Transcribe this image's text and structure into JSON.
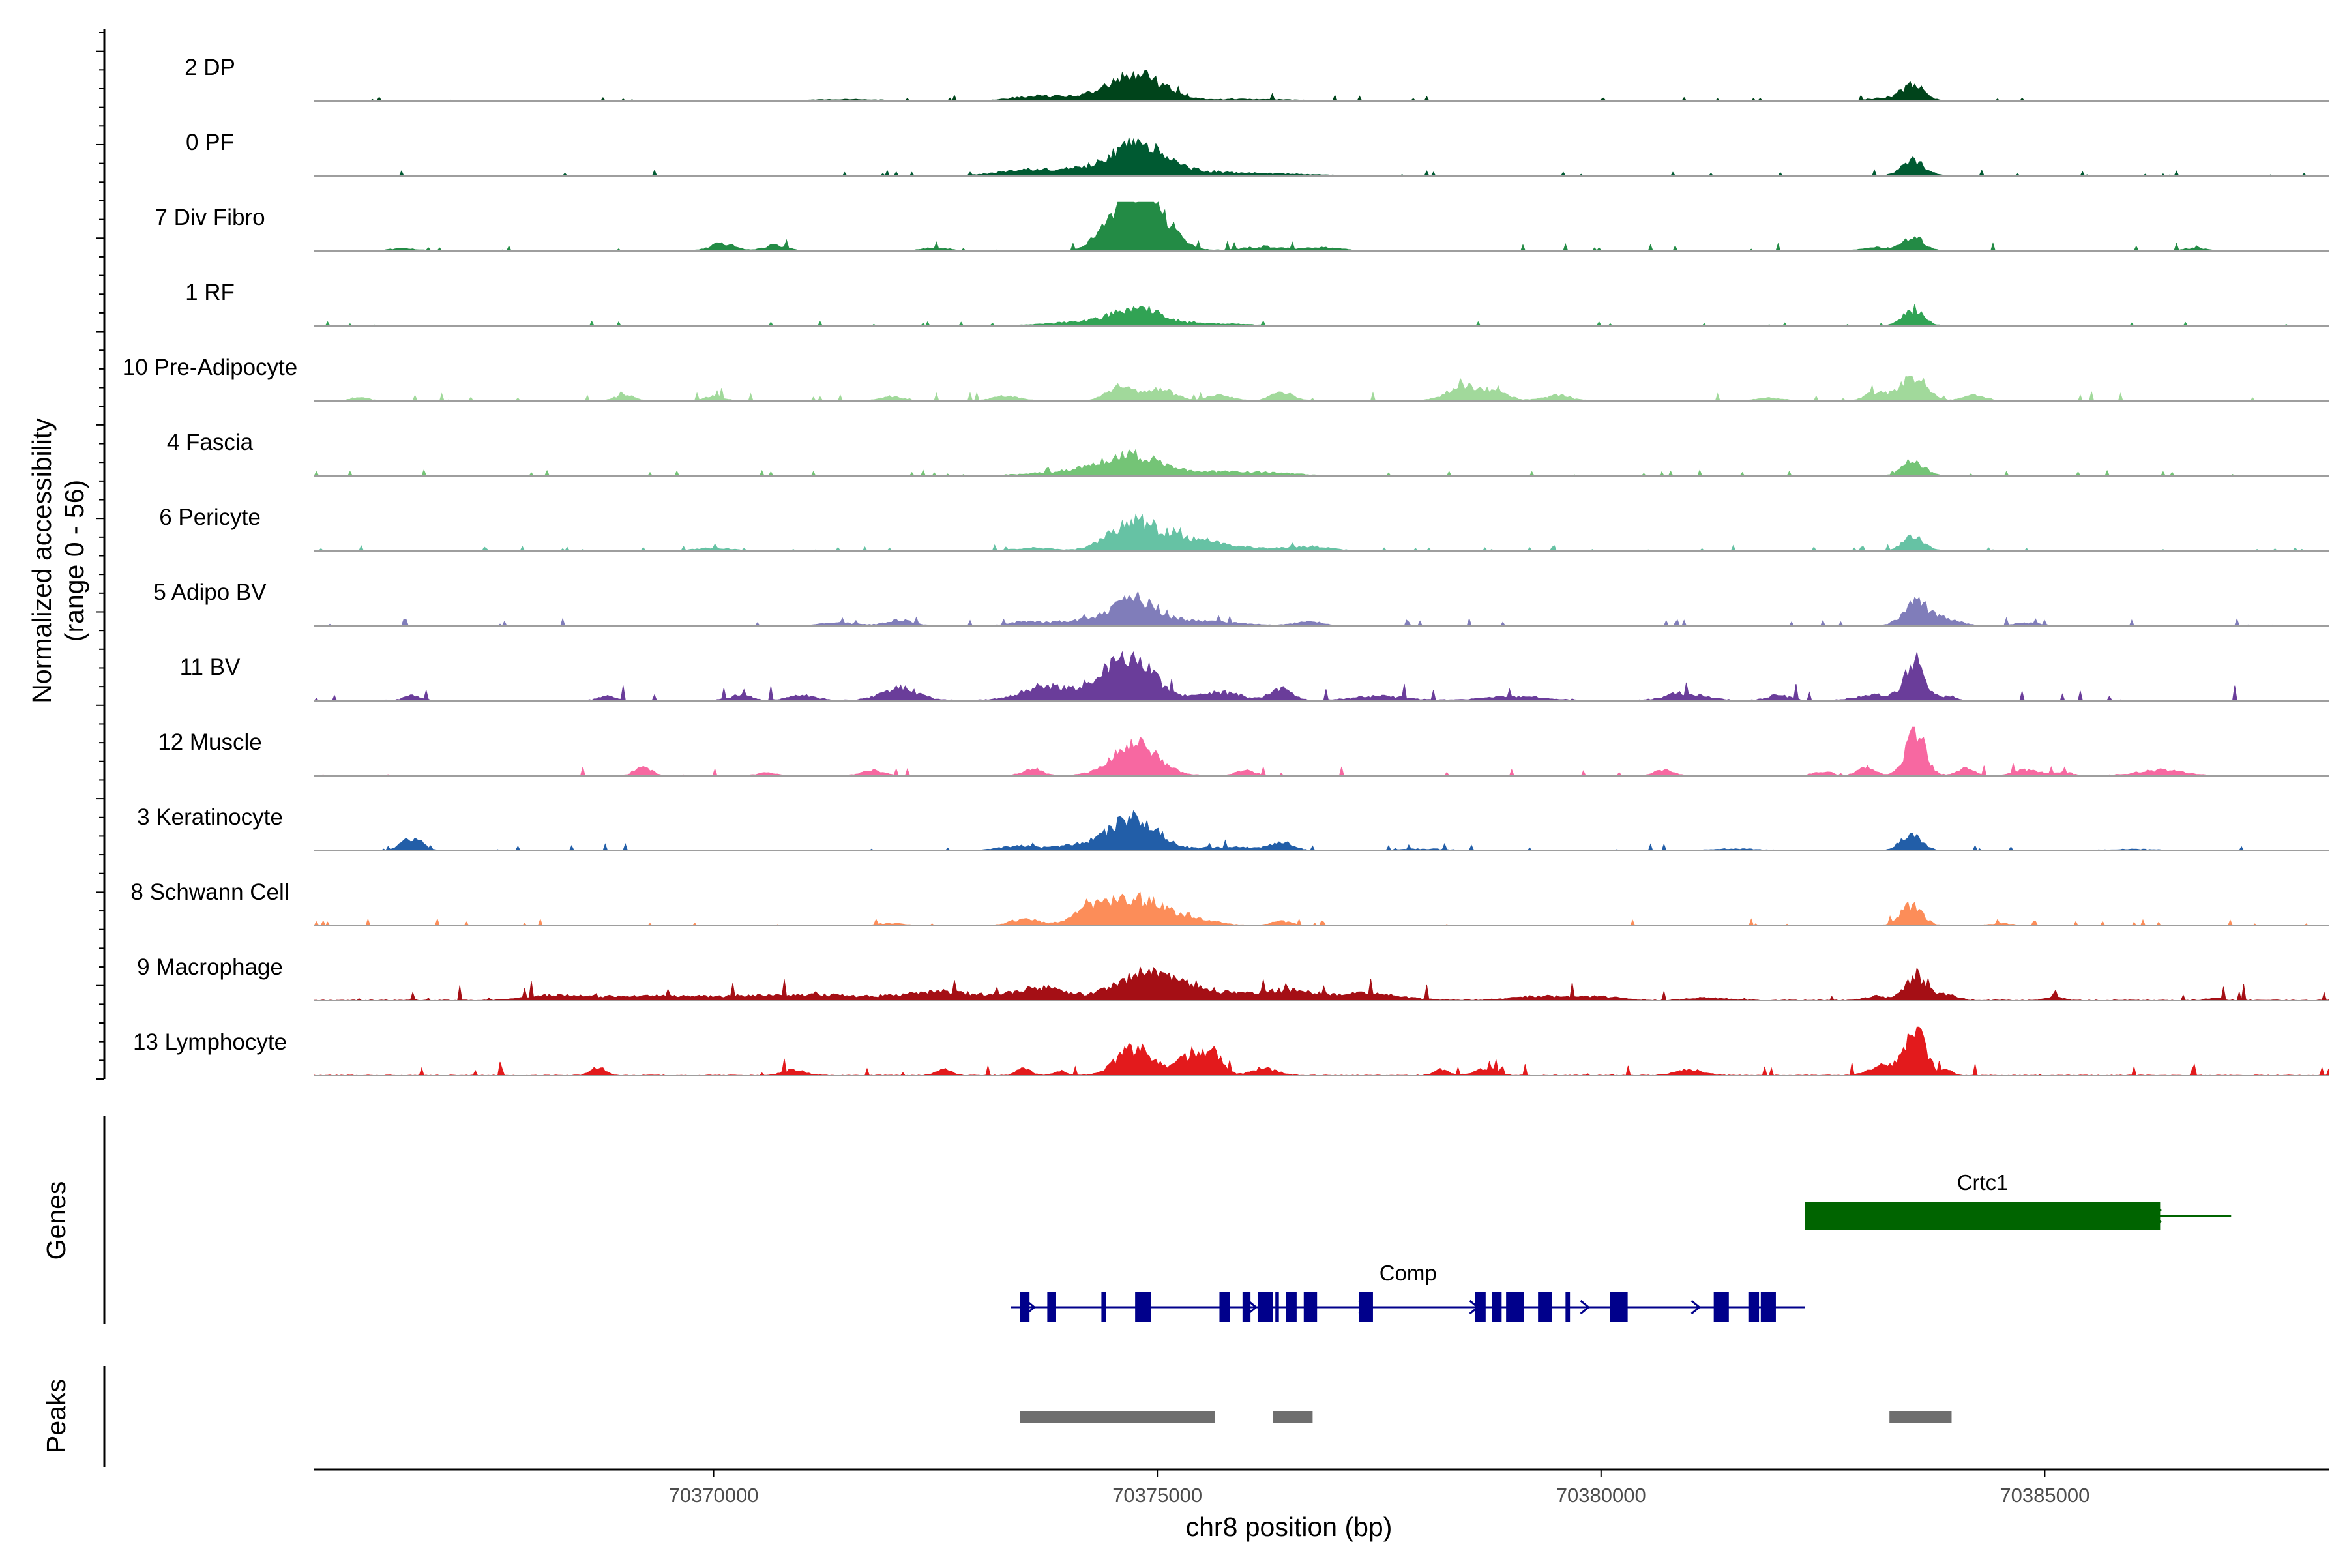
{
  "chart_data": {
    "type": "area",
    "xlabel": "chr8 position (bp)",
    "xlim": [
      70365500,
      70388200
    ],
    "x_ticks": [
      70370000,
      70375000,
      70380000,
      70385000
    ],
    "x_tick_labels": [
      "70370000",
      "70375000",
      "70380000",
      "70385000"
    ],
    "coverage": {
      "ylabel_line1": "Normalized accessibility",
      "ylabel_line2": "(range 0 - 56)",
      "y_range": [
        0,
        56
      ],
      "tracks": [
        {
          "name": "2 DP",
          "color": "#00441b",
          "noise": 0.05,
          "seed": 11,
          "peaks": [
            [
              70374780,
              260,
              0.95
            ],
            [
              70374400,
              500,
              0.18
            ],
            [
              70373600,
              250,
              0.12
            ],
            [
              70383520,
              120,
              0.55
            ],
            [
              70383200,
              200,
              0.1
            ],
            [
              70376000,
              500,
              0.06
            ],
            [
              70371500,
              400,
              0.05
            ]
          ]
        },
        {
          "name": "0 PF",
          "color": "#005a32",
          "noise": 0.05,
          "seed": 23,
          "peaks": [
            [
              70374780,
              280,
              1.0
            ],
            [
              70374200,
              600,
              0.22
            ],
            [
              70375400,
              500,
              0.15
            ],
            [
              70383520,
              130,
              0.55
            ],
            [
              70373500,
              300,
              0.1
            ],
            [
              70376500,
              400,
              0.06
            ]
          ]
        },
        {
          "name": "7 Div Fibro",
          "color": "#238b45",
          "noise": 0.07,
          "seed": 37,
          "peaks": [
            [
              70374780,
              250,
              1.55
            ],
            [
              70374500,
              180,
              0.55
            ],
            [
              70374900,
              250,
              0.9
            ],
            [
              70370100,
              150,
              0.25
            ],
            [
              70370700,
              120,
              0.2
            ],
            [
              70383520,
              110,
              0.55
            ],
            [
              70376200,
              250,
              0.15
            ],
            [
              70376900,
              200,
              0.12
            ],
            [
              70383100,
              150,
              0.12
            ],
            [
              70386700,
              120,
              0.1
            ],
            [
              70366500,
              150,
              0.08
            ],
            [
              70372500,
              150,
              0.1
            ]
          ]
        },
        {
          "name": "1 RF",
          "color": "#31a354",
          "noise": 0.04,
          "seed": 41,
          "peaks": [
            [
              70374780,
              260,
              0.55
            ],
            [
              70374300,
              500,
              0.15
            ],
            [
              70383520,
              120,
              0.55
            ],
            [
              70375600,
              400,
              0.08
            ]
          ]
        },
        {
          "name": "10 Pre-Adipocyte",
          "color": "#a1d99b",
          "noise": 0.08,
          "seed": 53,
          "peaks": [
            [
              70374600,
              150,
              0.55
            ],
            [
              70375050,
              150,
              0.4
            ],
            [
              70378450,
              180,
              0.5
            ],
            [
              70378800,
              160,
              0.3
            ],
            [
              70383520,
              140,
              0.9
            ],
            [
              70376400,
              120,
              0.3
            ],
            [
              70369000,
              100,
              0.22
            ],
            [
              70370000,
              100,
              0.18
            ],
            [
              70372000,
              120,
              0.15
            ],
            [
              70373300,
              140,
              0.18
            ],
            [
              70375700,
              140,
              0.2
            ],
            [
              70384200,
              120,
              0.22
            ],
            [
              70381900,
              120,
              0.12
            ],
            [
              70383100,
              120,
              0.3
            ],
            [
              70366000,
              100,
              0.12
            ],
            [
              70379500,
              150,
              0.2
            ]
          ]
        },
        {
          "name": "4 Fascia",
          "color": "#74c476",
          "noise": 0.05,
          "seed": 67,
          "peaks": [
            [
              70374700,
              300,
              0.65
            ],
            [
              70374200,
              500,
              0.18
            ],
            [
              70375500,
              500,
              0.15
            ],
            [
              70383520,
              120,
              0.55
            ],
            [
              70376300,
              300,
              0.08
            ]
          ]
        },
        {
          "name": "6 Pericyte",
          "color": "#66c2a4",
          "noise": 0.05,
          "seed": 71,
          "peaks": [
            [
              70374700,
              250,
              0.8
            ],
            [
              70375100,
              400,
              0.35
            ],
            [
              70375500,
              500,
              0.2
            ],
            [
              70383520,
              120,
              0.5
            ],
            [
              70376700,
              250,
              0.15
            ],
            [
              70370000,
              200,
              0.1
            ],
            [
              70373600,
              200,
              0.1
            ]
          ]
        },
        {
          "name": "5 Adipo BV",
          "color": "#807dba",
          "noise": 0.06,
          "seed": 83,
          "peaks": [
            [
              70374750,
              230,
              0.85
            ],
            [
              70374300,
              500,
              0.2
            ],
            [
              70375500,
              400,
              0.18
            ],
            [
              70383550,
              140,
              0.85
            ],
            [
              70383900,
              150,
              0.25
            ],
            [
              70372100,
              150,
              0.2
            ],
            [
              70371400,
              200,
              0.1
            ],
            [
              70376700,
              150,
              0.15
            ],
            [
              70384800,
              150,
              0.1
            ],
            [
              70373500,
              150,
              0.1
            ]
          ]
        },
        {
          "name": "11 BV",
          "color": "#6a3d9a",
          "noise": 0.14,
          "seed": 97,
          "peaks": [
            [
              70374750,
              230,
              1.45
            ],
            [
              70374400,
              300,
              0.6
            ],
            [
              70373700,
              250,
              0.45
            ],
            [
              70372100,
              200,
              0.45
            ],
            [
              70383540,
              110,
              1.45
            ],
            [
              70383100,
              200,
              0.2
            ],
            [
              70376400,
              120,
              0.4
            ],
            [
              70371000,
              150,
              0.2
            ],
            [
              70375700,
              250,
              0.3
            ],
            [
              70366600,
              90,
              0.18
            ],
            [
              70368800,
              90,
              0.15
            ],
            [
              70370300,
              120,
              0.2
            ],
            [
              70377500,
              300,
              0.15
            ],
            [
              70379000,
              300,
              0.15
            ],
            [
              70380800,
              150,
              0.1
            ],
            [
              70381000,
              200,
              0.2
            ],
            [
              70382000,
              120,
              0.2
            ],
            [
              70383900,
              80,
              0.15
            ]
          ]
        },
        {
          "name": "12 Muscle",
          "color": "#f768a1",
          "noise": 0.1,
          "seed": 101,
          "peaks": [
            [
              70374750,
              250,
              1.2
            ],
            [
              70383540,
              110,
              1.6
            ],
            [
              70369200,
              90,
              0.35
            ],
            [
              70371800,
              120,
              0.2
            ],
            [
              70373600,
              100,
              0.25
            ],
            [
              70376000,
              100,
              0.2
            ],
            [
              70380700,
              100,
              0.2
            ],
            [
              70382500,
              100,
              0.15
            ],
            [
              70383000,
              100,
              0.3
            ],
            [
              70384100,
              100,
              0.25
            ],
            [
              70384800,
              150,
              0.2
            ],
            [
              70386300,
              250,
              0.2
            ],
            [
              70385200,
              100,
              0.12
            ],
            [
              70370600,
              100,
              0.1
            ]
          ]
        },
        {
          "name": "3 Keratinocyte",
          "color": "#225ea8",
          "noise": 0.06,
          "seed": 113,
          "peaks": [
            [
              70374750,
              250,
              1.05
            ],
            [
              70374300,
              400,
              0.25
            ],
            [
              70383500,
              120,
              0.6
            ],
            [
              70366600,
              120,
              0.45
            ],
            [
              70376400,
              120,
              0.3
            ],
            [
              70373400,
              200,
              0.15
            ],
            [
              70375800,
              400,
              0.12
            ],
            [
              70378000,
              300,
              0.06
            ],
            [
              70381500,
              300,
              0.06
            ],
            [
              70386000,
              300,
              0.05
            ]
          ]
        },
        {
          "name": "8 Schwann Cell",
          "color": "#fc8d59",
          "noise": 0.06,
          "seed": 127,
          "peaks": [
            [
              70374700,
              300,
              0.95
            ],
            [
              70374200,
              200,
              0.4
            ],
            [
              70375300,
              300,
              0.3
            ],
            [
              70383500,
              120,
              0.75
            ],
            [
              70373500,
              150,
              0.25
            ],
            [
              70376400,
              120,
              0.15
            ],
            [
              70372000,
              150,
              0.08
            ],
            [
              70384500,
              120,
              0.08
            ]
          ]
        },
        {
          "name": "9 Macrophage",
          "color": "#a50f15",
          "noise": 0.14,
          "seed": 131,
          "peaks": [
            [
              70374800,
              300,
              0.75
            ],
            [
              70375300,
              400,
              0.5
            ],
            [
              70373700,
              300,
              0.45
            ],
            [
              70372600,
              400,
              0.3
            ],
            [
              70376400,
              300,
              0.35
            ],
            [
              70383550,
              120,
              0.9
            ],
            [
              70383900,
              120,
              0.2
            ],
            [
              70371000,
              800,
              0.2
            ],
            [
              70369200,
              600,
              0.15
            ],
            [
              70377300,
              400,
              0.25
            ],
            [
              70368200,
              300,
              0.15
            ],
            [
              70379300,
              300,
              0.15
            ],
            [
              70380000,
              250,
              0.12
            ],
            [
              70381200,
              200,
              0.1
            ],
            [
              70385100,
              100,
              0.12
            ],
            [
              70386900,
              80,
              0.08
            ],
            [
              70383100,
              120,
              0.15
            ]
          ]
        },
        {
          "name": "13 Lymphocyte",
          "color": "#e31a1c",
          "noise": 0.12,
          "seed": 149,
          "peaks": [
            [
              70374750,
              200,
              1.0
            ],
            [
              70375400,
              150,
              0.8
            ],
            [
              70375650,
              100,
              0.7
            ],
            [
              70383550,
              110,
              1.7
            ],
            [
              70383200,
              150,
              0.4
            ],
            [
              70368700,
              80,
              0.3
            ],
            [
              70370900,
              120,
              0.2
            ],
            [
              70372600,
              80,
              0.25
            ],
            [
              70373500,
              80,
              0.25
            ],
            [
              70376200,
              150,
              0.25
            ],
            [
              70378200,
              80,
              0.2
            ],
            [
              70378700,
              120,
              0.25
            ],
            [
              70381000,
              150,
              0.2
            ],
            [
              70383900,
              60,
              0.2
            ],
            [
              70373900,
              80,
              0.15
            ]
          ]
        }
      ]
    },
    "genes": {
      "ylabel": "Genes",
      "items": [
        {
          "name": "Crtc1",
          "color": "#006400",
          "strand": "-",
          "start": 70382300,
          "end": 70387100,
          "exons": [
            [
              70382300,
              70386300
            ]
          ]
        },
        {
          "name": "Comp",
          "color": "#00008b",
          "strand": "+",
          "start": 70373350,
          "end": 70382300,
          "exons": [
            [
              70373450,
              70373560
            ],
            [
              70373760,
              70373860
            ],
            [
              70374370,
              70374420
            ],
            [
              70374750,
              70374930
            ],
            [
              70375700,
              70375820
            ],
            [
              70375960,
              70376050
            ],
            [
              70376130,
              70376300
            ],
            [
              70376330,
              70376370
            ],
            [
              70376450,
              70376570
            ],
            [
              70376650,
              70376800
            ],
            [
              70377270,
              70377430
            ],
            [
              70378580,
              70378700
            ],
            [
              70378770,
              70378880
            ],
            [
              70378930,
              70379130
            ],
            [
              70379290,
              70379450
            ],
            [
              70379600,
              70379650
            ],
            [
              70380100,
              70380300
            ],
            [
              70381270,
              70381440
            ],
            [
              70381660,
              70381780
            ],
            [
              70381800,
              70381970
            ]
          ]
        }
      ]
    },
    "peaks": {
      "ylabel": "Peaks",
      "color": "#6e6e6e",
      "regions": [
        [
          70373450,
          70375650
        ],
        [
          70376300,
          70376750
        ],
        [
          70383250,
          70383950
        ]
      ]
    }
  }
}
